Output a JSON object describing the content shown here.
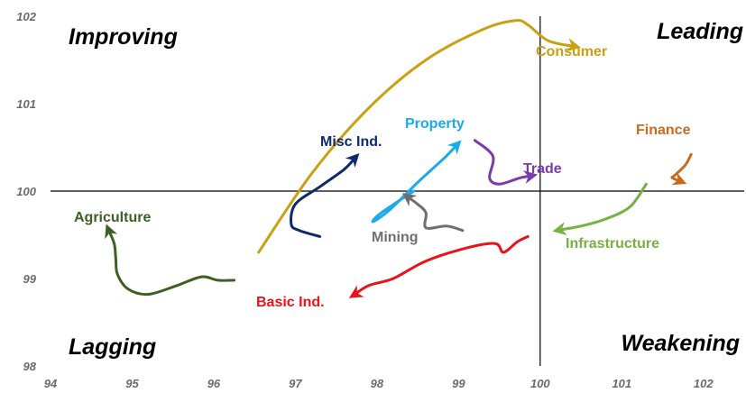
{
  "chart_data": {
    "type": "scatter",
    "title": "",
    "xlabel": "",
    "ylabel": "",
    "xlim": [
      94,
      102.5
    ],
    "ylim": [
      98,
      102
    ],
    "x_ticks": [
      "94",
      "95",
      "96",
      "97",
      "98",
      "99",
      "100",
      "101",
      "102"
    ],
    "y_ticks": [
      "98",
      "99",
      "100",
      "101",
      "102"
    ],
    "center": {
      "x": 100,
      "y": 100
    },
    "quadrants": {
      "top_left": "Improving",
      "top_right": "Leading",
      "bottom_left": "Lagging",
      "bottom_right": "Weakening"
    },
    "series": [
      {
        "name": "Consumer",
        "color": "#C9A012",
        "x": [
          96.55,
          97.2,
          97.9,
          98.6,
          99.3,
          99.7,
          99.85,
          100.1,
          100.45
        ],
        "y": [
          99.3,
          100.2,
          100.95,
          101.5,
          101.85,
          101.95,
          101.9,
          101.72,
          101.65
        ]
      },
      {
        "name": "Misc Ind.",
        "color": "#0D2A6B",
        "x": [
          97.3,
          97.05,
          96.95,
          97.0,
          97.3,
          97.6,
          97.75
        ],
        "y": [
          99.48,
          99.55,
          99.62,
          99.85,
          100.05,
          100.25,
          100.4
        ]
      },
      {
        "name": "Property",
        "color": "#1AACEA",
        "x": [
          98.45,
          98.05,
          97.95,
          98.15,
          98.5,
          98.85,
          99.0
        ],
        "y": [
          100.0,
          99.75,
          99.65,
          99.78,
          100.1,
          100.4,
          100.55
        ]
      },
      {
        "name": "Trade",
        "color": "#7B3CA8",
        "x": [
          99.2,
          99.42,
          99.38,
          99.5,
          99.75,
          99.92
        ],
        "y": [
          100.58,
          100.4,
          100.15,
          100.08,
          100.15,
          100.18
        ]
      },
      {
        "name": "Finance",
        "color": "#C96A1E",
        "x": [
          101.85,
          101.78,
          101.65,
          101.62,
          101.75
        ],
        "y": [
          100.42,
          100.3,
          100.18,
          100.15,
          100.1
        ]
      },
      {
        "name": "Mining",
        "color": "#6F6F6F",
        "x": [
          99.05,
          98.85,
          98.6,
          98.6,
          98.5,
          98.35
        ],
        "y": [
          99.55,
          99.6,
          99.58,
          99.75,
          99.85,
          99.95
        ]
      },
      {
        "name": "Infrastructure",
        "color": "#78B041",
        "x": [
          101.3,
          101.1,
          100.8,
          100.5,
          100.2
        ],
        "y": [
          100.08,
          99.82,
          99.68,
          99.6,
          99.55
        ]
      },
      {
        "name": "Agriculture",
        "color": "#3E5F23",
        "x": [
          96.25,
          96.05,
          95.85,
          95.55,
          95.2,
          94.95,
          94.82,
          94.8,
          94.78,
          94.7
        ],
        "y": [
          98.98,
          98.98,
          99.02,
          98.92,
          98.82,
          98.88,
          99.05,
          99.22,
          99.4,
          99.58
        ]
      },
      {
        "name": "Basic Ind.",
        "color": "#E8141A",
        "x": [
          99.85,
          99.72,
          99.55,
          99.45,
          99.1,
          98.6,
          98.2,
          97.9,
          97.7
        ],
        "y": [
          99.48,
          99.42,
          99.3,
          99.4,
          99.35,
          99.2,
          99.0,
          98.92,
          98.8
        ]
      }
    ]
  },
  "labels": {
    "Consumer": "Consumer",
    "Misc Ind.": "Misc Ind.",
    "Property": "Property",
    "Trade": "Trade",
    "Finance": "Finance",
    "Mining": "Mining",
    "Infrastructure": "Infrastructure",
    "Agriculture": "Agriculture",
    "Basic Ind.": "Basic Ind."
  }
}
